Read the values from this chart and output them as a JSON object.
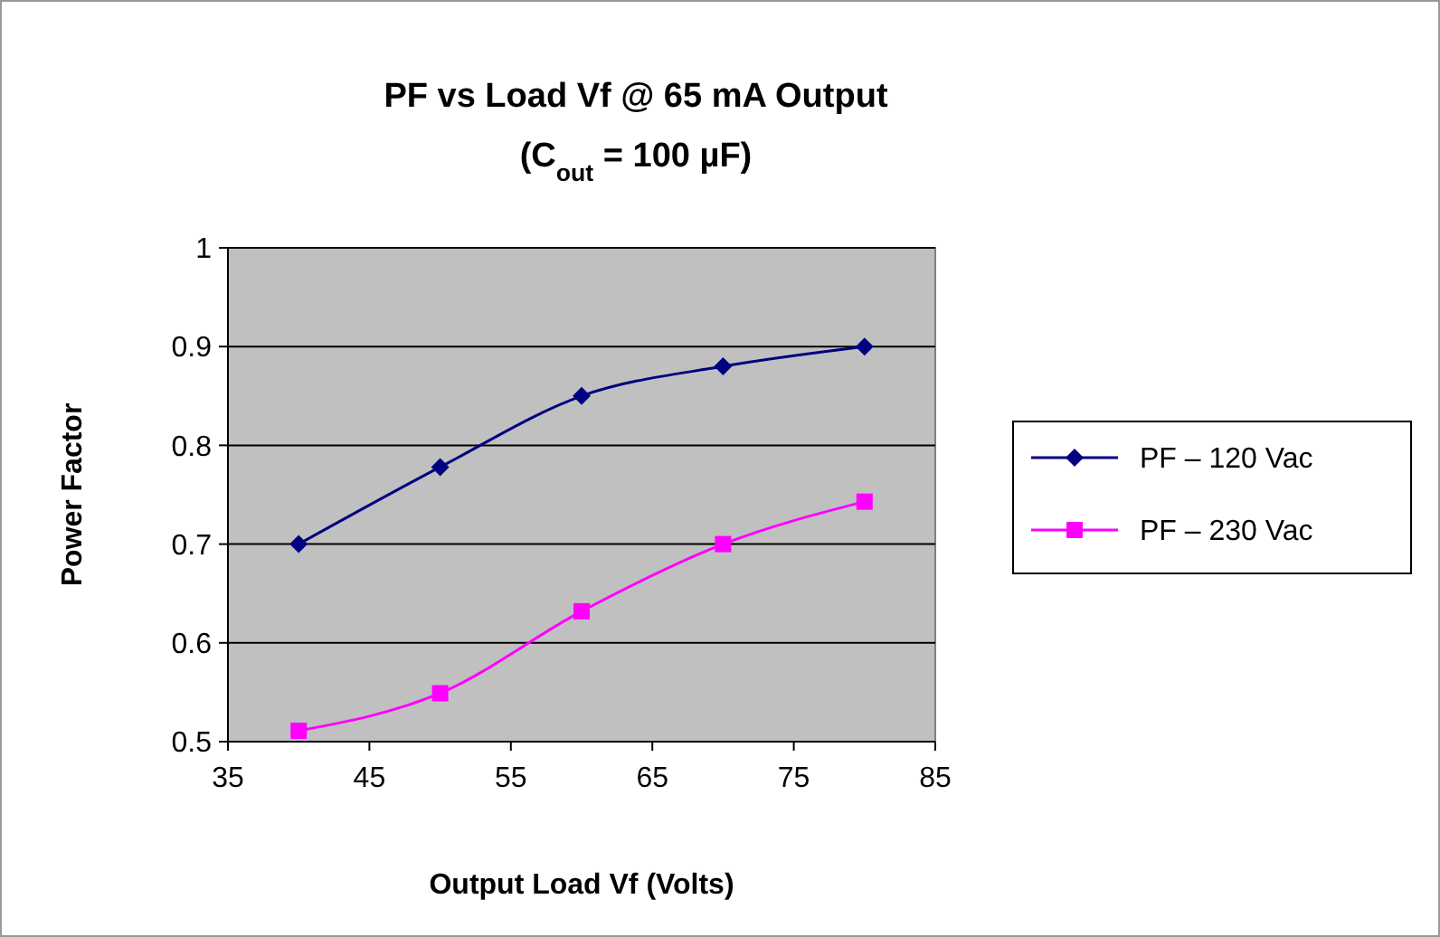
{
  "chart_data": {
    "type": "line",
    "title": "PF vs Load Vf @ 65 mA Output",
    "subtitle": "(C$_{out}$ = 100 µF)",
    "xlabel": "Output Load Vf (Volts)",
    "ylabel": "Power Factor",
    "x": [
      40,
      50,
      60,
      70,
      80
    ],
    "series": [
      {
        "name": "PF – 120 Vac",
        "color": "#000080",
        "marker": "diamond",
        "values": [
          0.7,
          0.778,
          0.85,
          0.88,
          0.9
        ]
      },
      {
        "name": "PF – 230 Vac",
        "color": "#ff00ff",
        "marker": "square",
        "values": [
          0.511,
          0.549,
          0.632,
          0.7,
          0.743
        ]
      }
    ],
    "xlim": [
      35,
      85
    ],
    "xticks": [
      35,
      45,
      55,
      65,
      75,
      85
    ],
    "ylim": [
      0.5,
      1
    ],
    "yticks": [
      0.5,
      0.6,
      0.7,
      0.8,
      0.9,
      1
    ],
    "grid": "y",
    "legend": "right"
  }
}
